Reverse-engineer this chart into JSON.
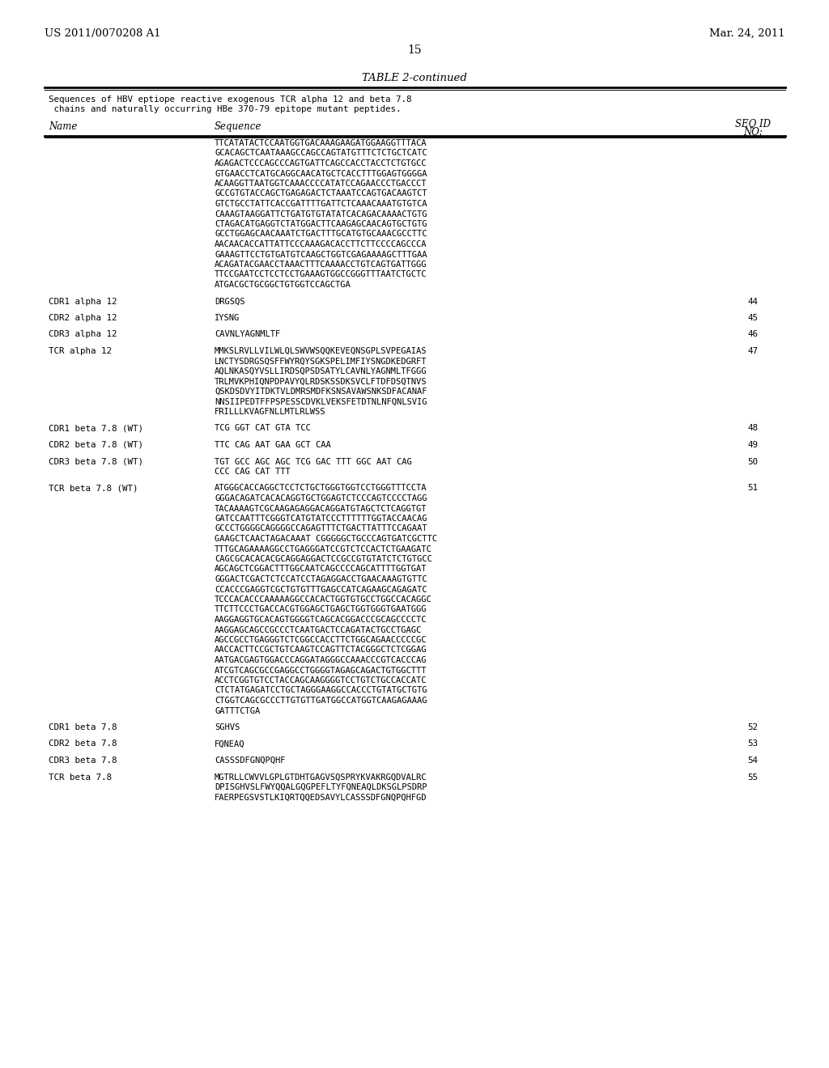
{
  "header_left": "US 2011/0070208 A1",
  "header_right": "Mar. 24, 2011",
  "page_number": "15",
  "table_title": "TABLE 2-continued",
  "table_description_line1": "Sequences of HBV eptiope reactive exogenous TCR alpha 12 and beta 7.8",
  "table_description_line2": " chains and naturally occurring HBe 370-79 epitope mutant peptides.",
  "col_name": "Name",
  "col_seq": "Sequence",
  "col_seqid_1": "SEQ ID",
  "col_seqid_2": "NO:",
  "rows": [
    {
      "name": "",
      "sequence": "TTCATATACTCCAATGGTGACAAAGAAGATGGAAGGTTTACA\nGCACAGCTCAATAAAGCCAGCCAGTATGTTTCTCTGCTCATC\nAGAGACTCCCAGCCCAGTGATTCAGCCACCTACCTCTGTGCC\nGTGAACCTCATGCAGGCAACATGCTCACCTTTGGAGTGGGGA\nACAAGGTTAATGGTCAAACCCCATATCCAGAACCCTGACCCT\nGCCGTGTACCAGCTGAGAGACTCTAAATCCAGTGACAAGTCT\nGTCTGCCTATTCACCGATTTTGATTCTCAAACAAATGTGTCA\nCAAAGTAAGGATTCTGATGTGTATATCACAGACAAAACTGTG\nCTAGACATGAGGTCTATGGACTTCAAGAGCAACAGTGCTGTG\nGCCTGGAGCAACAAATCTGACTTTGCATGTGCAAACGCCTTC\nAACAACACCATTATTCCCAAAGACACCTTCTTCCCCAGCCCA\nGAAAGTTCCTGTGATGTCAAGCTGGTCGAGAAAAGCTTTGAA\nACAGATACGAACCTAAACTTTCAAAACCTGTCAGTGATTGGG\nTTCCGAATCCTCCTCCTGAAAGTGGCCGGGTTTAATCTGCTC\nATGACGCTGCGGCTGTGGTCCAGCTGA",
      "seq_id": ""
    },
    {
      "name": "CDR1 alpha 12",
      "sequence": "DRGSQS",
      "seq_id": "44"
    },
    {
      "name": "CDR2 alpha 12",
      "sequence": "IYSNG",
      "seq_id": "45"
    },
    {
      "name": "CDR3 alpha 12",
      "sequence": "CAVNLYAGNMLTF",
      "seq_id": "46"
    },
    {
      "name": "TCR alpha 12",
      "sequence": "MMKSLRVLLVILWLQLSWVWSQQKEVEQNSGPLSVPEGAIAS\nLNCTYSDRGSQSFFWYRQYSGKSPELIMFIYSNGDKEDGRFT\nAQLNKASQYVSLLIRDSQPSDSATYLCAVNLYAGNMLTFGGG\nTRLMVKPHIQNPDPAVYQLRDSKSSDKSVCLFTDFDSQTNVS\nQSKDSDVYITDKTVLDMRSMDFKSNSAVAWSNKSDFACANAF\nNNSIIPEDTFFPSPESSCDVKLVEKSFETDTNLNFQNLSVIG\nFRILLLKVAGFNLLMTLRLWSS",
      "seq_id": "47"
    },
    {
      "name": "CDR1 beta 7.8 (WT)",
      "sequence": "TCG GGT CAT GTA TCC",
      "seq_id": "48"
    },
    {
      "name": "CDR2 beta 7.8 (WT)",
      "sequence": "TTC CAG AAT GAA GCT CAA",
      "seq_id": "49"
    },
    {
      "name": "CDR3 beta 7.8 (WT)",
      "sequence": "TGT GCC AGC AGC TCG GAC TTT GGC AAT CAG\nCCC CAG CAT TTT",
      "seq_id": "50"
    },
    {
      "name": "TCR beta 7.8 (WT)",
      "sequence": "ATGGGCACCAGGCTCCTCTGCTGGGTGGTCCTGGGTTTCCTA\nGGGACAGATCACACAGGTGCTGGAGTCTCCCAGTCCCCTAGG\nTACAAAAGTCGCAAGAGAGGACAGGATGTAGCTCTCAGGTGT\nGATCCAATTTCGGGTCATGTATCCCTTTTTTGGTACCAACAG\nGCCCTGGGGCAGGGGCCAGAGTTTCTGACTTATTTCCAGAAT\nGAAGCTCAACTAGACAAAT CGGGGGCTGCCCAGTGATCGCTTC\nTTTGCAGAAAAGGCCTGAGGGATCCGTCTCCACTCTGAAGATC\nCAGCGCACACACGCAGGAGGACTCCGCCGTGTATCTCTGTGCC\nAGCAGCTCGGACTTTGGCAATCAGCCCCAGCATTTTGGTGAT\nGGGACTCGACTCTCCATCCTAGAGGACCTGAACAAAGTGTTC\nCCACCCGAGGTCGCTGTGTTTGAGCCATCAGAAGCAGAGATC\nTCCCACACCCAAAAAGGCCACACTGGTGTGCCTGGCCACAGGC\nTTCTTCCCTGACCACGTGGAGCTGAGCTGGTGGGTGAATGGG\nAAGGAGGTGCACAGTGGGGTCAGCACGGACCCGCAGCCCCTC\nAAGGAGCAGCCGCCCTCAATGACTCCAGATACTGCCTGAGC\nAGCCGCCTGAGGGTCTCGGCCACCTTCTGGCAGAACCCCCGC\nAACCACTTCCGCTGTCAAGTCCAGTTCTACGGGCTCTCGGAG\nAATGACGAGTGGACCCAGGATAGGGCCAAACCCGTCACCCAG\nATCGTCAGCGCCGAGGCCTGGGGTAGAGCAGACTGTGGCTTT\nACCTCGGTGTCCTACCAGCAAGGGGTCCTGTCTGCCACCATC\nCTCTATGAGATCCTGCTAGGGAAGGCCACCCTGTATGCTGTG\nCTGGTCAGCGCCCTTGTGTTGATGGCCATGGTCAAGAGAAAG\nGATTTCTGA",
      "seq_id": "51"
    },
    {
      "name": "CDR1 beta 7.8",
      "sequence": "SGHVS",
      "seq_id": "52"
    },
    {
      "name": "CDR2 beta 7.8",
      "sequence": "FQNEAQ",
      "seq_id": "53"
    },
    {
      "name": "CDR3 beta 7.8",
      "sequence": "CASSSDFGNQPQHF",
      "seq_id": "54"
    },
    {
      "name": "TCR beta 7.8",
      "sequence": "MGTRLLCWVVLGPLGTDHTGAGVSQSPRYKVAKRGQDVALRC\nDPISGHVSLFWYQQALGQGPEFLTYFQNEAQLDKSGLPSDRP\nFAERPEGSVSTLKIQRTQQEDSAVYLCASSSDFGNQPQHFGD",
      "seq_id": "55"
    }
  ],
  "bg_color": "#ffffff",
  "text_color": "#000000"
}
